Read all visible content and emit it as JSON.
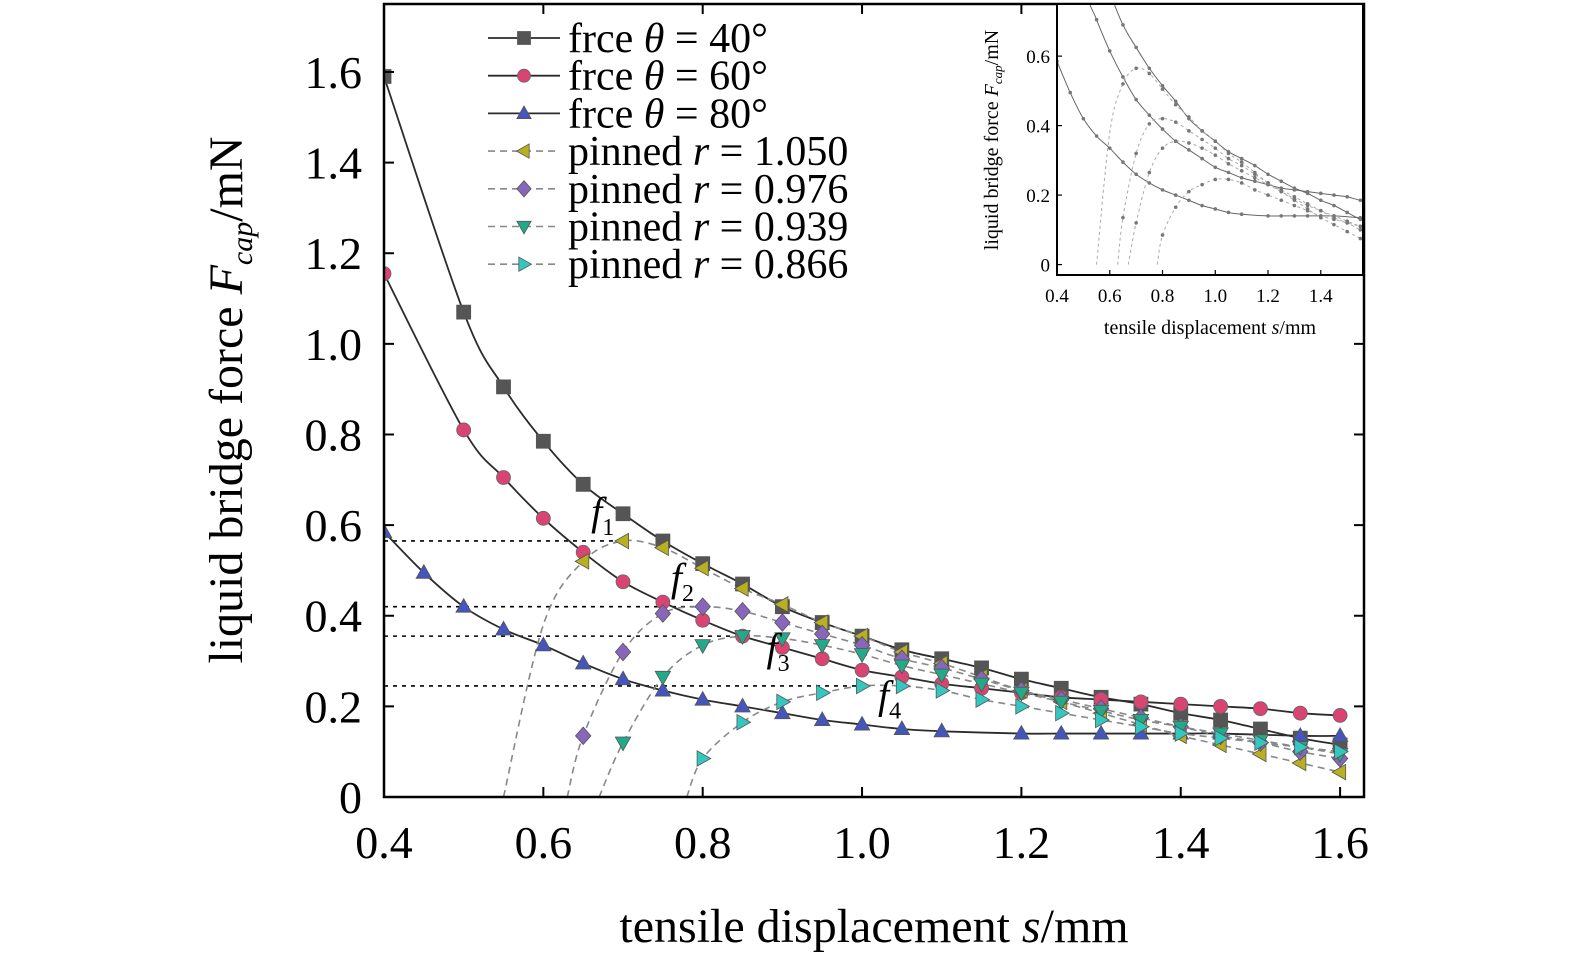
{
  "chart_data": {
    "type": "line",
    "xlabel": {
      "text": "tensile displacement ",
      "var": "s",
      "unit": "/mm"
    },
    "ylabel": {
      "text": "liquid bridge force ",
      "var": "F",
      "sub": "cap",
      "unit": "/mN"
    },
    "xlim": [
      0.4,
      1.63
    ],
    "ylim": [
      0,
      1.75
    ],
    "xticks": [
      "0.4",
      "0.6",
      "0.8",
      "1.0",
      "1.2",
      "1.4",
      "1.6"
    ],
    "yticks": [
      "0",
      "0.2",
      "0.4",
      "0.6",
      "0.8",
      "1.0",
      "1.2",
      "1.4",
      "1.6"
    ],
    "xtick_values": [
      0.4,
      0.6,
      0.8,
      1.0,
      1.2,
      1.4,
      1.6
    ],
    "ytick_values": [
      0,
      0.2,
      0.4,
      0.6,
      0.8,
      1.0,
      1.2,
      1.4,
      1.6
    ],
    "legend_position": "top-left",
    "series": [
      {
        "name": "frce θ = 40°",
        "label": "frce ",
        "sym": "θ",
        "val": " = 40°",
        "color": "#2b2b2b",
        "marker_color": "#555555",
        "marker": "square",
        "dash": false,
        "x": [
          0.4,
          0.5,
          0.55,
          0.6,
          0.65,
          0.7,
          0.75,
          0.8,
          0.85,
          0.9,
          0.95,
          1.0,
          1.05,
          1.1,
          1.15,
          1.2,
          1.25,
          1.3,
          1.35,
          1.4,
          1.45,
          1.5,
          1.55,
          1.6
        ],
        "y": [
          1.59,
          1.07,
          0.905,
          0.785,
          0.69,
          0.625,
          0.565,
          0.515,
          0.47,
          0.42,
          0.385,
          0.355,
          0.325,
          0.305,
          0.285,
          0.26,
          0.24,
          0.22,
          0.205,
          0.185,
          0.17,
          0.15,
          0.13,
          0.115
        ]
      },
      {
        "name": "frce θ = 60°",
        "label": "frce ",
        "sym": "θ",
        "val": " = 60°",
        "color": "#2b2b2b",
        "marker_color": "#d94472",
        "marker": "circle",
        "dash": false,
        "x": [
          0.4,
          0.5,
          0.55,
          0.6,
          0.65,
          0.7,
          0.75,
          0.8,
          0.85,
          0.9,
          0.95,
          1.0,
          1.05,
          1.1,
          1.15,
          1.2,
          1.25,
          1.3,
          1.35,
          1.4,
          1.45,
          1.5,
          1.55,
          1.6
        ],
        "y": [
          1.155,
          0.81,
          0.705,
          0.615,
          0.54,
          0.475,
          0.43,
          0.39,
          0.355,
          0.33,
          0.305,
          0.28,
          0.265,
          0.25,
          0.24,
          0.23,
          0.22,
          0.215,
          0.21,
          0.205,
          0.2,
          0.195,
          0.185,
          0.18
        ]
      },
      {
        "name": "frce θ = 80°",
        "label": "frce ",
        "sym": "θ",
        "val": " = 80°",
        "color": "#2b2b2b",
        "marker_color": "#4455bb",
        "marker": "triangle-up",
        "dash": false,
        "x": [
          0.4,
          0.45,
          0.5,
          0.55,
          0.6,
          0.65,
          0.7,
          0.75,
          0.8,
          0.85,
          0.9,
          0.95,
          1.0,
          1.05,
          1.1,
          1.2,
          1.25,
          1.3,
          1.35,
          1.4,
          1.45,
          1.55,
          1.6
        ],
        "y": [
          0.585,
          0.495,
          0.42,
          0.37,
          0.335,
          0.295,
          0.26,
          0.235,
          0.215,
          0.2,
          0.185,
          0.17,
          0.16,
          0.15,
          0.145,
          0.14,
          0.14,
          0.14,
          0.14,
          0.14,
          0.14,
          0.135,
          0.135
        ]
      },
      {
        "name": "pinned r = 1.050",
        "label": "pinned ",
        "sym": "r",
        "val": " = 1.050",
        "color": "#888888",
        "marker_color": "#b8b020",
        "marker": "triangle-left",
        "dash": true,
        "x": [
          0.55,
          0.6,
          0.65,
          0.7,
          0.75,
          0.8,
          0.85,
          0.9,
          0.95,
          1.0,
          1.05,
          1.1,
          1.15,
          1.2,
          1.25,
          1.3,
          1.35,
          1.4,
          1.45,
          1.5,
          1.55,
          1.6
        ],
        "y": [
          0.0,
          0.38,
          0.52,
          0.565,
          0.55,
          0.505,
          0.46,
          0.425,
          0.385,
          0.355,
          0.32,
          0.295,
          0.265,
          0.235,
          0.21,
          0.185,
          0.16,
          0.135,
          0.115,
          0.095,
          0.075,
          0.055
        ],
        "marker_x": [
          0.65,
          0.7,
          0.75,
          0.8,
          0.85,
          0.9,
          0.95,
          1.0,
          1.05,
          1.1,
          1.15,
          1.2,
          1.25,
          1.3,
          1.35,
          1.4,
          1.45,
          1.5,
          1.55,
          1.6
        ]
      },
      {
        "name": "pinned r = 0.976",
        "label": "pinned ",
        "sym": "r",
        "val": " = 0.976",
        "color": "#888888",
        "marker_color": "#8866bb",
        "marker": "diamond",
        "dash": true,
        "x": [
          0.63,
          0.65,
          0.7,
          0.75,
          0.8,
          0.85,
          0.9,
          0.95,
          1.0,
          1.05,
          1.1,
          1.15,
          1.2,
          1.25,
          1.3,
          1.35,
          1.4,
          1.45,
          1.5,
          1.55,
          1.6
        ],
        "y": [
          0.0,
          0.135,
          0.32,
          0.405,
          0.42,
          0.41,
          0.385,
          0.36,
          0.335,
          0.305,
          0.285,
          0.26,
          0.235,
          0.215,
          0.195,
          0.175,
          0.155,
          0.135,
          0.12,
          0.1,
          0.085
        ],
        "marker_x": [
          0.65,
          0.7,
          0.75,
          0.8,
          0.85,
          0.9,
          0.95,
          1.0,
          1.05,
          1.1,
          1.15,
          1.2,
          1.25,
          1.3,
          1.35,
          1.4,
          1.45,
          1.5,
          1.55,
          1.6
        ]
      },
      {
        "name": "pinned r = 0.939",
        "label": "pinned ",
        "sym": "r",
        "val": " = 0.939",
        "color": "#888888",
        "marker_color": "#22aa88",
        "marker": "triangle-down",
        "dash": true,
        "x": [
          0.67,
          0.7,
          0.75,
          0.8,
          0.85,
          0.9,
          0.95,
          1.0,
          1.05,
          1.1,
          1.15,
          1.2,
          1.25,
          1.3,
          1.35,
          1.4,
          1.45,
          1.5,
          1.55,
          1.6
        ],
        "y": [
          0.0,
          0.12,
          0.265,
          0.335,
          0.355,
          0.35,
          0.335,
          0.315,
          0.29,
          0.27,
          0.25,
          0.23,
          0.21,
          0.19,
          0.17,
          0.155,
          0.14,
          0.125,
          0.11,
          0.095
        ],
        "marker_x": [
          0.7,
          0.75,
          0.8,
          0.85,
          0.9,
          0.95,
          1.0,
          1.05,
          1.1,
          1.15,
          1.2,
          1.25,
          1.3,
          1.35,
          1.4,
          1.45,
          1.5,
          1.55,
          1.6
        ]
      },
      {
        "name": "pinned r = 0.866",
        "label": "pinned ",
        "sym": "r",
        "val": " = 0.866",
        "color": "#888888",
        "marker_color": "#33c7c0",
        "marker": "triangle-right",
        "dash": true,
        "x": [
          0.78,
          0.8,
          0.85,
          0.9,
          0.95,
          1.0,
          1.05,
          1.1,
          1.15,
          1.2,
          1.25,
          1.3,
          1.35,
          1.4,
          1.45,
          1.5,
          1.55,
          1.6
        ],
        "y": [
          0.0,
          0.085,
          0.165,
          0.21,
          0.23,
          0.245,
          0.245,
          0.235,
          0.215,
          0.2,
          0.185,
          0.17,
          0.155,
          0.14,
          0.13,
          0.12,
          0.11,
          0.1
        ],
        "marker_x": [
          0.8,
          0.85,
          0.9,
          0.95,
          1.0,
          1.05,
          1.1,
          1.15,
          1.2,
          1.25,
          1.3,
          1.35,
          1.4,
          1.45,
          1.5,
          1.55,
          1.6
        ]
      }
    ],
    "reference_lines": [
      {
        "y": 0.565,
        "x_end": 0.7
      },
      {
        "y": 0.42,
        "x_end": 0.8
      },
      {
        "y": 0.355,
        "x_end": 0.85
      },
      {
        "y": 0.245,
        "x_end": 1.0
      }
    ],
    "annotations": [
      {
        "base": "f",
        "sub": "1",
        "x": 0.66,
        "y": 0.6
      },
      {
        "base": "f",
        "sub": "2",
        "x": 0.76,
        "y": 0.455
      },
      {
        "base": "f",
        "sub": "3",
        "x": 0.88,
        "y": 0.3
      },
      {
        "base": "f",
        "sub": "4",
        "x": 1.02,
        "y": 0.195
      }
    ],
    "inset": {
      "xlabel": {
        "text": "tensile displacement ",
        "var": "s",
        "unit": "/mm"
      },
      "ylabel": {
        "text": "liquid bridge force ",
        "var": "F",
        "sub": "cap",
        "unit": "/mN"
      },
      "xlim": [
        0.4,
        1.56
      ],
      "ylim": [
        -0.03,
        0.75
      ],
      "xticks": [
        "0.4",
        "0.6",
        "0.8",
        "1.0",
        "1.2",
        "1.4"
      ],
      "xtick_values": [
        0.4,
        0.6,
        0.8,
        1.0,
        1.2,
        1.4
      ],
      "yticks": [
        "0",
        "0.2",
        "0.4",
        "0.6"
      ],
      "ytick_values": [
        0,
        0.2,
        0.4,
        0.6
      ]
    }
  }
}
